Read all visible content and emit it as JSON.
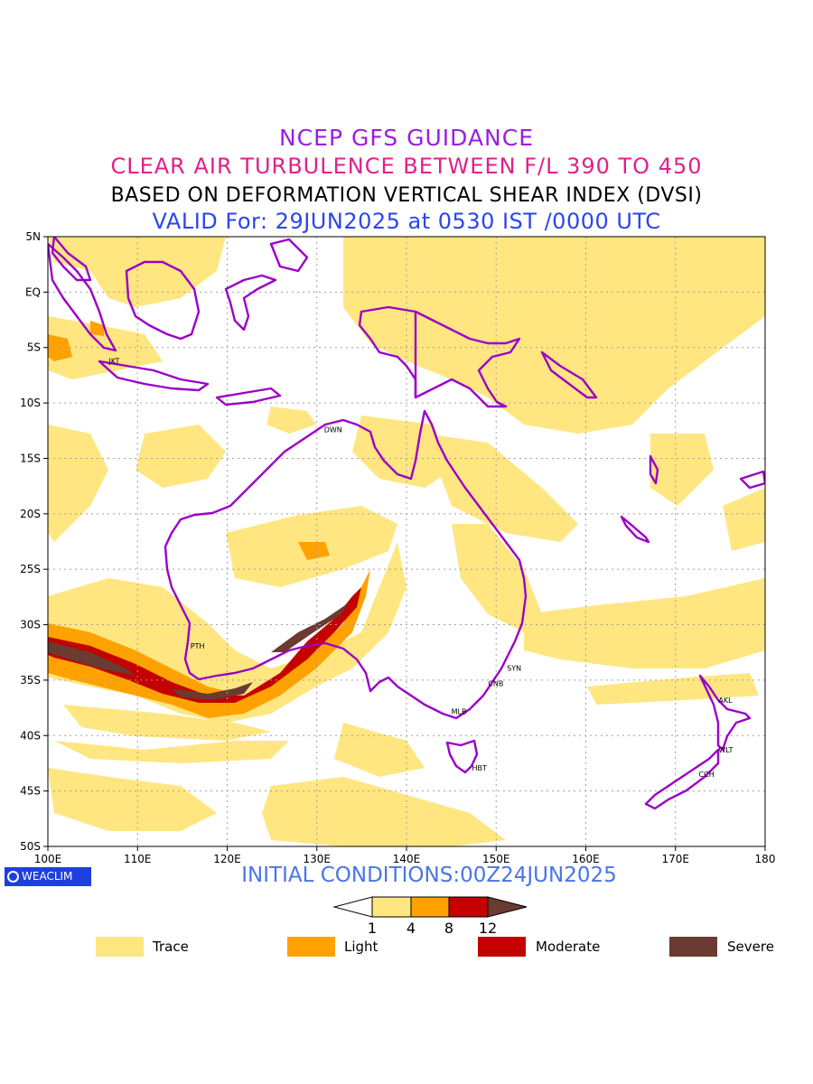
{
  "header": {
    "line1": "NCEP GFS GUIDANCE",
    "line2": "CLEAR AIR TURBULENCE BETWEEN F/L 390 TO 450",
    "line3": "BASED ON DEFORMATION VERTICAL SHEAR INDEX (DVSI)",
    "line4": "VALID For: 29JUN2025 at 0530 IST /0000 UTC"
  },
  "map": {
    "lon_range": [
      100,
      180
    ],
    "lat_range": [
      -50,
      5
    ],
    "lon_ticks": [
      "100E",
      "110E",
      "120E",
      "130E",
      "140E",
      "150E",
      "160E",
      "170E",
      "180"
    ],
    "lat_ticks": [
      "5N",
      "EQ",
      "5S",
      "10S",
      "15S",
      "20S",
      "25S",
      "30S",
      "35S",
      "40S",
      "45S",
      "50S"
    ],
    "grid": true,
    "stations": [
      {
        "code": "JKT",
        "lon": 106.8,
        "lat": -6.2
      },
      {
        "code": "DWN",
        "lon": 130.8,
        "lat": -12.4
      },
      {
        "code": "PTH",
        "lon": 115.9,
        "lat": -31.9
      },
      {
        "code": "SYN",
        "lon": 151.2,
        "lat": -33.9
      },
      {
        "code": "CNB",
        "lon": 149.1,
        "lat": -35.3
      },
      {
        "code": "MLB",
        "lon": 145.0,
        "lat": -37.8
      },
      {
        "code": "HBT",
        "lon": 147.3,
        "lat": -42.9
      },
      {
        "code": "AKL",
        "lon": 174.8,
        "lat": -36.8
      },
      {
        "code": "WLT",
        "lon": 174.8,
        "lat": -41.3
      },
      {
        "code": "CCH",
        "lon": 172.6,
        "lat": -43.5
      }
    ],
    "colors": {
      "coast": "#9b00c8",
      "trace": "#ffe680",
      "light": "#ffa200",
      "moderate": "#c40000",
      "severe": "#6b3a30",
      "grid": "#a0a0a0"
    }
  },
  "footer": {
    "logo": "WEACLIM",
    "initial": "INITIAL CONDITIONS:00Z24JUN2025"
  },
  "colorbar": {
    "ticks": [
      "1",
      "4",
      "8",
      "12"
    ]
  },
  "legend": [
    {
      "label": "Trace",
      "color": "#ffe680"
    },
    {
      "label": "Light",
      "color": "#ffa200"
    },
    {
      "label": "Moderate",
      "color": "#c40000"
    },
    {
      "label": "Severe",
      "color": "#6b3a30"
    }
  ]
}
